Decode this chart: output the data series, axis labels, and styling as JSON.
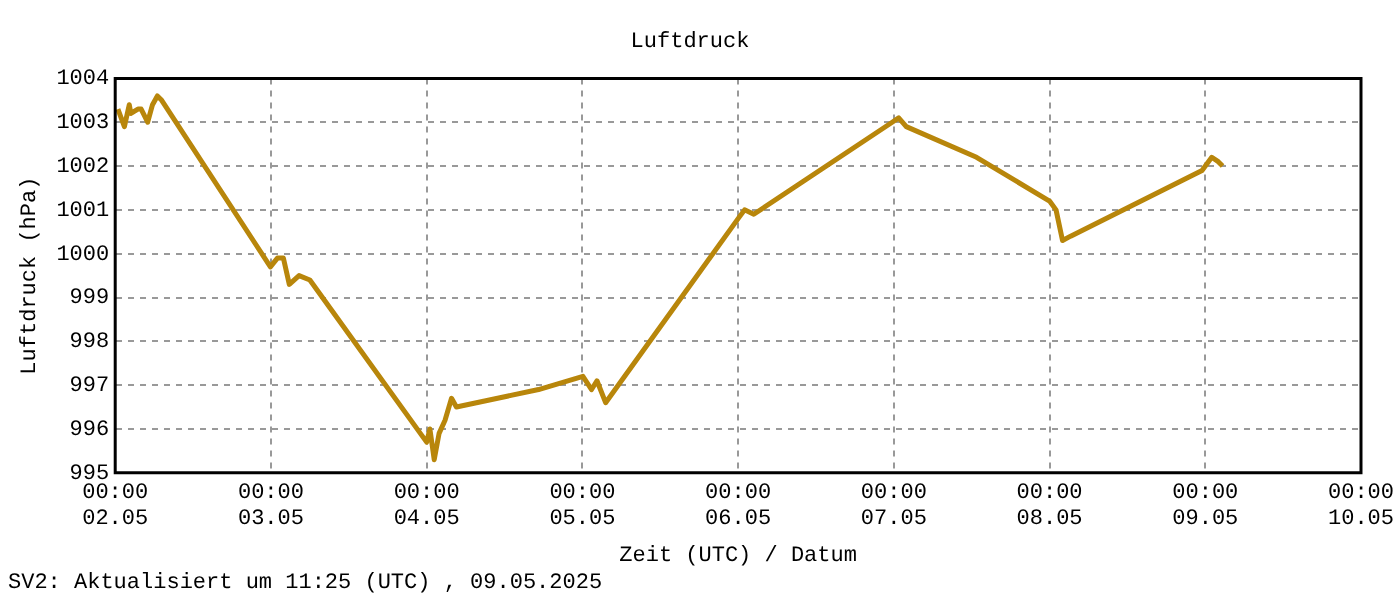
{
  "chart_data": {
    "type": "line",
    "title": "Luftdruck",
    "xlabel": "Zeit (UTC) / Datum",
    "ylabel": "Luftdruck (hPa)",
    "annotations": [
      "SV2: Aktualisiert um 11:25 (UTC) , 09.05.2025"
    ],
    "x": [
      "2025-05-02T00:25",
      "2025-05-02T01:25",
      "2025-05-02T02:10",
      "2025-05-02T02:25",
      "2025-05-02T03:30",
      "2025-05-02T04:00",
      "2025-05-02T05:00",
      "2025-05-02T05:45",
      "2025-05-02T06:30",
      "2025-05-02T07:10",
      "2025-05-02T23:55",
      "2025-05-03T01:00",
      "2025-05-03T01:55",
      "2025-05-03T02:50",
      "2025-05-03T04:20",
      "2025-05-03T06:00",
      "2025-05-04T00:00",
      "2025-05-04T00:30",
      "2025-05-04T01:10",
      "2025-05-04T01:55",
      "2025-05-04T02:50",
      "2025-05-04T03:50",
      "2025-05-04T04:35",
      "2025-05-04T17:15",
      "2025-05-05T00:05",
      "2025-05-05T01:25",
      "2025-05-05T02:15",
      "2025-05-05T03:35",
      "2025-05-06T00:00",
      "2025-05-06T01:00",
      "2025-05-06T02:25",
      "2025-05-06T23:45",
      "2025-05-07T00:45",
      "2025-05-07T01:55",
      "2025-05-07T12:45",
      "2025-05-08T00:00",
      "2025-05-08T01:00",
      "2025-05-08T02:00",
      "2025-05-08T03:15",
      "2025-05-08T23:30",
      "2025-05-09T01:00",
      "2025-05-09T02:00",
      "2025-05-09T02:40"
    ],
    "series": [
      {
        "color": "#b8860b",
        "values": [
          1003.3,
          1002.9,
          1003.4,
          1003.2,
          1003.3,
          1003.3,
          1003.0,
          1003.4,
          1003.6,
          1003.5,
          999.7,
          999.9,
          999.9,
          999.3,
          999.5,
          999.4,
          995.7,
          996.0,
          995.3,
          995.9,
          996.2,
          996.7,
          996.5,
          996.9,
          997.2,
          996.9,
          997.1,
          996.6,
          1000.8,
          1001.0,
          1000.9,
          1003.0,
          1003.1,
          1002.9,
          1002.2,
          1001.2,
          1001.0,
          1000.3,
          1000.4,
          1001.9,
          1002.2,
          1002.1,
          1002.0
        ]
      }
    ],
    "xlim": [
      "2025-05-02T00:00",
      "2025-05-10T00:00"
    ],
    "xticks": [
      {
        "value": "2025-05-02T00:00",
        "label": "00:00\n02.05"
      },
      {
        "value": "2025-05-03T00:00",
        "label": "00:00\n03.05"
      },
      {
        "value": "2025-05-04T00:00",
        "label": "00:00\n04.05"
      },
      {
        "value": "2025-05-05T00:00",
        "label": "00:00\n05.05"
      },
      {
        "value": "2025-05-06T00:00",
        "label": "00:00\n06.05"
      },
      {
        "value": "2025-05-07T00:00",
        "label": "00:00\n07.05"
      },
      {
        "value": "2025-05-08T00:00",
        "label": "00:00\n08.05"
      },
      {
        "value": "2025-05-09T00:00",
        "label": "00:00\n09.05"
      },
      {
        "value": "2025-05-10T00:00",
        "label": "00:00\n10.05"
      }
    ],
    "ylim": [
      995,
      1004
    ],
    "yticks": [
      995,
      996,
      997,
      998,
      999,
      1000,
      1001,
      1002,
      1003,
      1004
    ],
    "grid": true,
    "legend": false,
    "marker": "none",
    "line_style": "solid"
  }
}
